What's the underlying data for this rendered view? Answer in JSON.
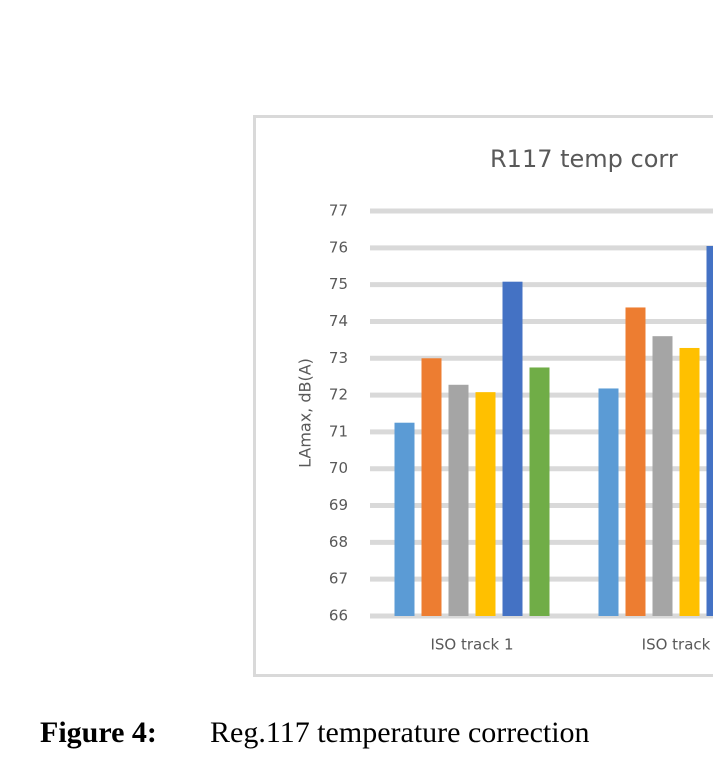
{
  "chart_data": {
    "type": "bar",
    "title": "R117 temp corr",
    "y_label": "LAmax, dB(A)",
    "categories": [
      "ISO track 1",
      "ISO track"
    ],
    "series": [
      {
        "color": "#5b9bd5",
        "values": [
          71.25,
          72.18
        ]
      },
      {
        "color": "#ed7d31",
        "values": [
          73.0,
          74.38
        ]
      },
      {
        "color": "#a5a5a5",
        "values": [
          72.28,
          73.6
        ]
      },
      {
        "color": "#ffc000",
        "values": [
          72.08,
          73.28
        ]
      },
      {
        "color": "#4472c4",
        "values": [
          75.08,
          76.05
        ]
      },
      {
        "color": "#70ad47",
        "values": [
          72.75,
          null
        ]
      }
    ],
    "ylim": [
      66,
      77
    ],
    "yticks": [
      66,
      67,
      68,
      69,
      70,
      71,
      72,
      73,
      74,
      75,
      76,
      77
    ],
    "grid": true
  },
  "caption": {
    "label": "Figure 4:",
    "text": "Reg.117 temperature correction"
  }
}
